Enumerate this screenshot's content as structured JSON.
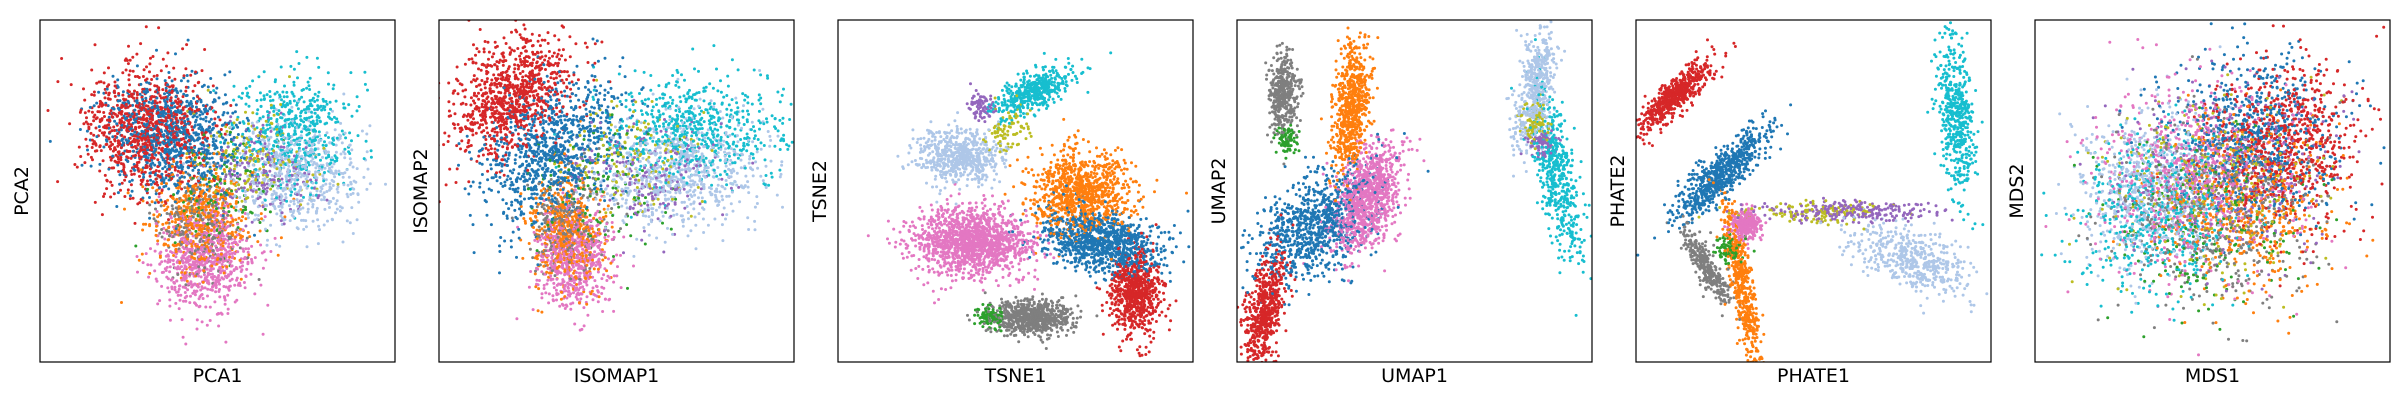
{
  "palette": {
    "blue": "#1f77b4",
    "light_blue": "#aec7e8",
    "orange": "#ff7f0e",
    "green": "#2ca02c",
    "red": "#d62728",
    "purple": "#9467bd",
    "pink": "#e377c2",
    "gray": "#7f7f7f",
    "olive": "#bcbd22",
    "cyan": "#17becf"
  },
  "chart_data": [
    {
      "type": "scatter",
      "xlabel": "PCA1",
      "ylabel": "PCA2",
      "xlim": [
        0,
        100
      ],
      "ylim": [
        0,
        100
      ],
      "grid": false,
      "ticks": false,
      "clusters": [
        {
          "color": "red",
          "cx": 30,
          "cy": 68,
          "sx": 9,
          "sy": 9,
          "rot": -35,
          "n": 900
        },
        {
          "color": "blue",
          "cx": 38,
          "cy": 66,
          "sx": 10,
          "sy": 8,
          "rot": -30,
          "n": 900
        },
        {
          "color": "orange",
          "cx": 45,
          "cy": 42,
          "sx": 7,
          "sy": 8,
          "rot": 0,
          "n": 500
        },
        {
          "color": "pink",
          "cx": 46,
          "cy": 30,
          "sx": 7,
          "sy": 7,
          "rot": 0,
          "n": 700
        },
        {
          "color": "gray",
          "cx": 45,
          "cy": 40,
          "sx": 6,
          "sy": 7,
          "rot": 0,
          "n": 250
        },
        {
          "color": "light_blue",
          "cx": 72,
          "cy": 55,
          "sx": 9,
          "sy": 8,
          "rot": 10,
          "n": 600
        },
        {
          "color": "cyan",
          "cx": 72,
          "cy": 68,
          "sx": 8,
          "sy": 8,
          "rot": 0,
          "n": 500
        },
        {
          "color": "purple",
          "cx": 62,
          "cy": 55,
          "sx": 8,
          "sy": 7,
          "rot": 0,
          "n": 200
        },
        {
          "color": "olive",
          "cx": 60,
          "cy": 60,
          "sx": 9,
          "sy": 7,
          "rot": 0,
          "n": 150
        },
        {
          "color": "green",
          "cx": 50,
          "cy": 50,
          "sx": 9,
          "sy": 8,
          "rot": 0,
          "n": 120
        }
      ]
    },
    {
      "type": "scatter",
      "xlabel": "ISOMAP1",
      "ylabel": "ISOMAP2",
      "xlim": [
        0,
        100
      ],
      "ylim": [
        0,
        100
      ],
      "grid": false,
      "ticks": false,
      "clusters": [
        {
          "color": "red",
          "cx": 20,
          "cy": 78,
          "sx": 7,
          "sy": 10,
          "rot": -40,
          "n": 900
        },
        {
          "color": "blue",
          "cx": 32,
          "cy": 62,
          "sx": 8,
          "sy": 12,
          "rot": -40,
          "n": 900
        },
        {
          "color": "orange",
          "cx": 36,
          "cy": 38,
          "sx": 5,
          "sy": 8,
          "rot": 0,
          "n": 500
        },
        {
          "color": "pink",
          "cx": 38,
          "cy": 30,
          "sx": 5,
          "sy": 7,
          "rot": 0,
          "n": 600
        },
        {
          "color": "gray",
          "cx": 36,
          "cy": 40,
          "sx": 5,
          "sy": 7,
          "rot": 0,
          "n": 250
        },
        {
          "color": "light_blue",
          "cx": 68,
          "cy": 55,
          "sx": 12,
          "sy": 8,
          "rot": 5,
          "n": 700
        },
        {
          "color": "cyan",
          "cx": 72,
          "cy": 68,
          "sx": 12,
          "sy": 8,
          "rot": 0,
          "n": 600
        },
        {
          "color": "purple",
          "cx": 58,
          "cy": 55,
          "sx": 10,
          "sy": 8,
          "rot": 0,
          "n": 200
        },
        {
          "color": "olive",
          "cx": 56,
          "cy": 60,
          "sx": 10,
          "sy": 8,
          "rot": 0,
          "n": 150
        },
        {
          "color": "green",
          "cx": 45,
          "cy": 50,
          "sx": 10,
          "sy": 8,
          "rot": 0,
          "n": 120
        }
      ]
    },
    {
      "type": "scatter",
      "xlabel": "TSNE1",
      "ylabel": "TSNE2",
      "xlim": [
        0,
        100
      ],
      "ylim": [
        0,
        100
      ],
      "grid": false,
      "ticks": false,
      "clusters": [
        {
          "color": "light_blue",
          "cx": 34,
          "cy": 60,
          "sx": 6,
          "sy": 4,
          "rot": 0,
          "n": 600
        },
        {
          "color": "cyan",
          "cx": 55,
          "cy": 79,
          "sx": 6,
          "sy": 2.5,
          "rot": 30,
          "n": 450
        },
        {
          "color": "purple",
          "cx": 40,
          "cy": 75,
          "sx": 2,
          "sy": 2,
          "rot": 0,
          "n": 80
        },
        {
          "color": "olive",
          "cx": 48,
          "cy": 68,
          "sx": 3,
          "sy": 4,
          "rot": 0,
          "n": 80
        },
        {
          "color": "pink",
          "cx": 38,
          "cy": 35,
          "sx": 8,
          "sy": 5,
          "rot": 0,
          "n": 1400
        },
        {
          "color": "orange",
          "cx": 69,
          "cy": 50,
          "sx": 7,
          "sy": 6,
          "rot": 0,
          "n": 900
        },
        {
          "color": "blue",
          "cx": 74,
          "cy": 35,
          "sx": 9,
          "sy": 4.5,
          "rot": -15,
          "n": 1000
        },
        {
          "color": "red",
          "cx": 84,
          "cy": 20,
          "sx": 3.5,
          "sy": 6,
          "rot": 0,
          "n": 700
        },
        {
          "color": "gray",
          "cx": 54,
          "cy": 13,
          "sx": 6,
          "sy": 2.5,
          "rot": 0,
          "n": 700
        },
        {
          "color": "green",
          "cx": 43,
          "cy": 13,
          "sx": 2,
          "sy": 1.5,
          "rot": 0,
          "n": 100
        }
      ]
    },
    {
      "type": "scatter",
      "xlabel": "UMAP1",
      "ylabel": "UMAP2",
      "xlim": [
        0,
        100
      ],
      "ylim": [
        0,
        100
      ],
      "grid": false,
      "ticks": false,
      "clusters": [
        {
          "color": "gray",
          "cx": 13,
          "cy": 78,
          "sx": 2,
          "sy": 6,
          "rot": 0,
          "n": 400
        },
        {
          "color": "green",
          "cx": 14,
          "cy": 65,
          "sx": 1.5,
          "sy": 2,
          "rot": 0,
          "n": 80
        },
        {
          "color": "orange",
          "cx": 32,
          "cy": 74,
          "sx": 2.5,
          "sy": 10,
          "rot": -5,
          "n": 700
        },
        {
          "color": "pink",
          "cx": 37,
          "cy": 48,
          "sx": 4,
          "sy": 8,
          "rot": -20,
          "n": 1000
        },
        {
          "color": "blue",
          "cx": 22,
          "cy": 40,
          "sx": 6,
          "sy": 10,
          "rot": -45,
          "n": 900
        },
        {
          "color": "red",
          "cx": 8,
          "cy": 15,
          "sx": 2.5,
          "sy": 9,
          "rot": -10,
          "n": 600
        },
        {
          "color": "light_blue",
          "cx": 84,
          "cy": 80,
          "sx": 2.5,
          "sy": 9,
          "rot": -10,
          "n": 500
        },
        {
          "color": "cyan",
          "cx": 90,
          "cy": 55,
          "sx": 2.5,
          "sy": 12,
          "rot": 10,
          "n": 500
        },
        {
          "color": "purple",
          "cx": 86,
          "cy": 64,
          "sx": 2,
          "sy": 2,
          "rot": 0,
          "n": 80
        },
        {
          "color": "olive",
          "cx": 84,
          "cy": 70,
          "sx": 2,
          "sy": 3,
          "rot": 0,
          "n": 80
        }
      ]
    },
    {
      "type": "scatter",
      "xlabel": "PHATE1",
      "ylabel": "PHATE2",
      "xlim": [
        0,
        100
      ],
      "ylim": [
        0,
        100
      ],
      "grid": false,
      "ticks": false,
      "clusters": [
        {
          "color": "red",
          "cx": 11,
          "cy": 78,
          "sx": 2,
          "sy": 7,
          "rot": -45,
          "n": 600
        },
        {
          "color": "blue",
          "cx": 24,
          "cy": 55,
          "sx": 2.5,
          "sy": 9,
          "rot": -45,
          "n": 700
        },
        {
          "color": "pink",
          "cx": 31,
          "cy": 40,
          "sx": 2,
          "sy": 2,
          "rot": 0,
          "n": 300
        },
        {
          "color": "gray",
          "cx": 20,
          "cy": 28,
          "sx": 1.5,
          "sy": 6,
          "rot": 30,
          "n": 300
        },
        {
          "color": "orange",
          "cx": 30,
          "cy": 22,
          "sx": 1.5,
          "sy": 12,
          "rot": 10,
          "n": 500
        },
        {
          "color": "green",
          "cx": 26,
          "cy": 33,
          "sx": 2,
          "sy": 2,
          "rot": 0,
          "n": 80
        },
        {
          "color": "purple",
          "cx": 60,
          "cy": 44,
          "sx": 13,
          "sy": 1.5,
          "rot": 0,
          "n": 250
        },
        {
          "color": "olive",
          "cx": 50,
          "cy": 44,
          "sx": 12,
          "sy": 1.5,
          "rot": 0,
          "n": 120
        },
        {
          "color": "light_blue",
          "cx": 78,
          "cy": 30,
          "sx": 9,
          "sy": 4,
          "rot": -25,
          "n": 500
        },
        {
          "color": "cyan",
          "cx": 90,
          "cy": 72,
          "sx": 2.5,
          "sy": 12,
          "rot": 5,
          "n": 500
        }
      ]
    },
    {
      "type": "scatter",
      "xlabel": "MDS1",
      "ylabel": "MDS2",
      "xlim": [
        0,
        100
      ],
      "ylim": [
        0,
        100
      ],
      "grid": false,
      "ticks": false,
      "clusters": [
        {
          "color": "red",
          "cx": 70,
          "cy": 65,
          "sx": 10,
          "sy": 12,
          "rot": 0,
          "n": 700
        },
        {
          "color": "blue",
          "cx": 62,
          "cy": 66,
          "sx": 12,
          "sy": 12,
          "rot": 0,
          "n": 700
        },
        {
          "color": "orange",
          "cx": 60,
          "cy": 45,
          "sx": 12,
          "sy": 12,
          "rot": 0,
          "n": 500
        },
        {
          "color": "pink",
          "cx": 45,
          "cy": 55,
          "sx": 14,
          "sy": 14,
          "rot": 0,
          "n": 700
        },
        {
          "color": "gray",
          "cx": 50,
          "cy": 45,
          "sx": 14,
          "sy": 14,
          "rot": 0,
          "n": 500
        },
        {
          "color": "light_blue",
          "cx": 32,
          "cy": 50,
          "sx": 10,
          "sy": 12,
          "rot": 0,
          "n": 600
        },
        {
          "color": "cyan",
          "cx": 35,
          "cy": 42,
          "sx": 12,
          "sy": 12,
          "rot": 0,
          "n": 500
        },
        {
          "color": "purple",
          "cx": 55,
          "cy": 55,
          "sx": 15,
          "sy": 14,
          "rot": 0,
          "n": 300
        },
        {
          "color": "olive",
          "cx": 50,
          "cy": 50,
          "sx": 16,
          "sy": 14,
          "rot": 0,
          "n": 300
        },
        {
          "color": "green",
          "cx": 48,
          "cy": 40,
          "sx": 14,
          "sy": 12,
          "rot": 0,
          "n": 200
        }
      ]
    }
  ]
}
